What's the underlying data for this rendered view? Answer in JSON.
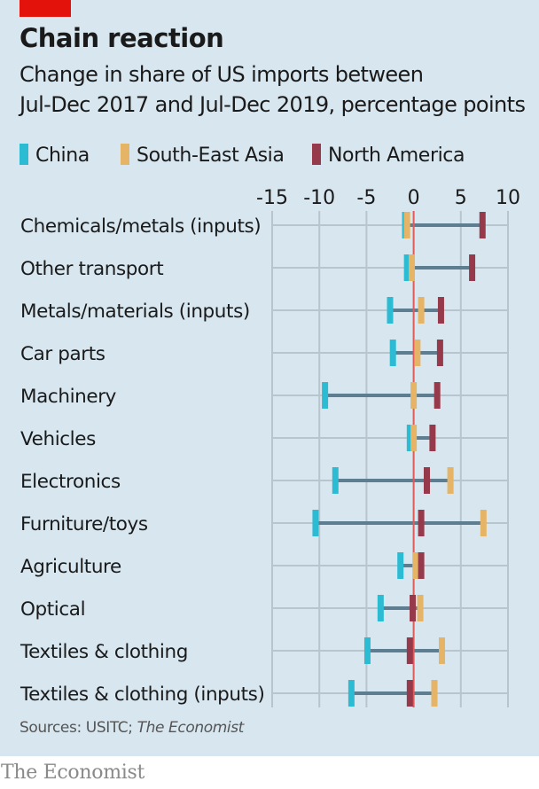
{
  "header": {
    "title": "Chain reaction",
    "subtitle_line1": "Change in share of US imports between",
    "subtitle_line2": "Jul-Dec 2017 and Jul-Dec 2019, percentage points"
  },
  "colors": {
    "background": "#d7e6ef",
    "china": "#2bbcd4",
    "south_east_asia": "#e6b467",
    "north_america": "#963a4b",
    "connector": "#5d7d90",
    "zero_line": "#e05a5a",
    "gridline": "#b9c5cc",
    "brand_red": "#e3120b"
  },
  "footer": {
    "source_prefix": "Sources: USITC; ",
    "source_italic": "The Economist",
    "brand": "The Economist"
  },
  "chart_data": {
    "type": "dot-range",
    "title": "Chain reaction",
    "subtitle": "Change in share of US imports between Jul-Dec 2017 and Jul-Dec 2019, percentage points",
    "xlabel": "",
    "ylabel": "",
    "xlim": [
      -15,
      10
    ],
    "x_ticks": [
      -15,
      -10,
      -5,
      0,
      5,
      10
    ],
    "x_tick_labels": [
      "-15",
      "-10",
      "-5",
      "0",
      "5",
      "10"
    ],
    "x_axis_position": "top",
    "grid": true,
    "legend_position": "top-left",
    "categories": [
      "Chemicals/metals (inputs)",
      "Other transport",
      "Metals/materials (inputs)",
      "Car parts",
      "Machinery",
      "Vehicles",
      "Electronics",
      "Furniture/toys",
      "Agriculture",
      "Optical",
      "Textiles & clothing",
      "Textiles & clothing (inputs)"
    ],
    "series": [
      {
        "name": "China",
        "key": "china",
        "values": [
          -0.9,
          -0.7,
          -2.5,
          -2.2,
          -9.4,
          -0.4,
          -8.3,
          -10.4,
          -1.4,
          -3.5,
          -4.9,
          -6.6
        ]
      },
      {
        "name": "South-East Asia",
        "key": "south_east_asia",
        "values": [
          -0.7,
          -0.2,
          0.8,
          0.4,
          0.0,
          0.0,
          3.9,
          7.4,
          0.2,
          0.7,
          3.0,
          2.2
        ]
      },
      {
        "name": "North America",
        "key": "north_america",
        "values": [
          7.3,
          6.2,
          2.9,
          2.8,
          2.5,
          2.0,
          1.4,
          0.8,
          0.8,
          -0.1,
          -0.4,
          -0.4
        ]
      }
    ],
    "source": "Sources: USITC; The Economist"
  }
}
